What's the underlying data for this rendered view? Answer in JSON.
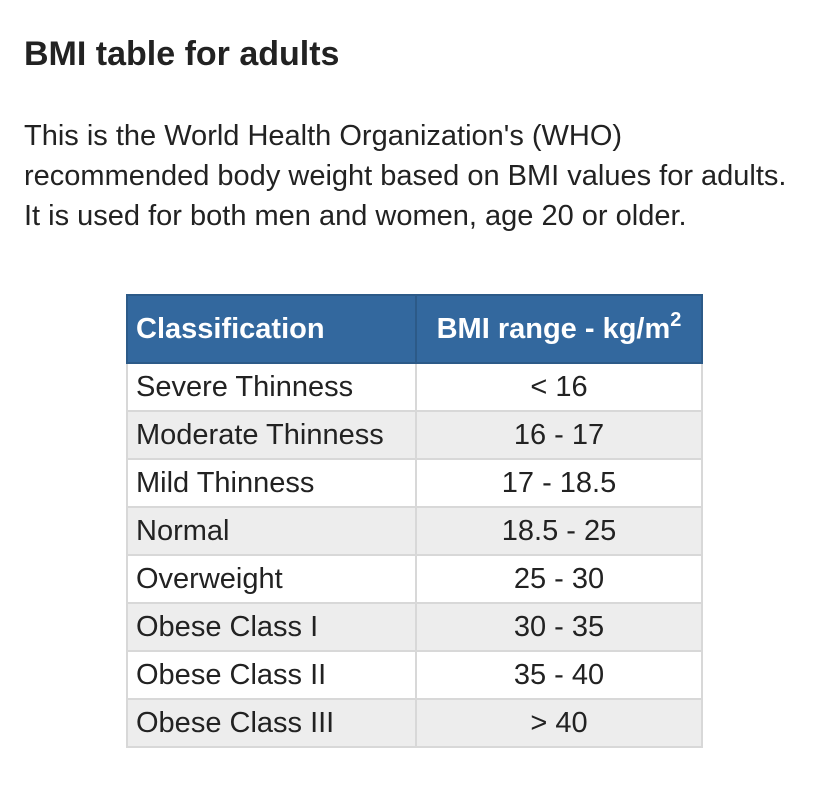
{
  "page": {
    "title": "BMI table for adults",
    "description": "This is the World Health Organization's (WHO) recommended body weight based on BMI values for adults. It is used for both men and women, age 20 or older."
  },
  "table": {
    "header": {
      "classification": "Classification",
      "range_label": "BMI range - kg/m",
      "range_superscript": "2"
    },
    "rows": [
      {
        "classification": "Severe Thinness",
        "range": "< 16"
      },
      {
        "classification": "Moderate Thinness",
        "range": "16 - 17"
      },
      {
        "classification": "Mild Thinness",
        "range": "17 - 18.5"
      },
      {
        "classification": "Normal",
        "range": "18.5 - 25"
      },
      {
        "classification": "Overweight",
        "range": "25 - 30"
      },
      {
        "classification": "Obese Class I",
        "range": "30 - 35"
      },
      {
        "classification": "Obese Class II",
        "range": "35 - 40"
      },
      {
        "classification": "Obese Class III",
        "range": "> 40"
      }
    ]
  },
  "colors": {
    "header_background": "#33689e",
    "header_text": "#ffffff",
    "stripe_background": "#ededed",
    "border": "#d8d8d8",
    "body_text": "#222222"
  }
}
